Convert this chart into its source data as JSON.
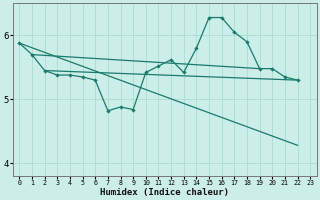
{
  "xlabel": "Humidex (Indice chaleur)",
  "bg_color": "#cceee8",
  "grid_color": "#aaddcc",
  "line_color": "#1a7a6e",
  "xlim": [
    -0.5,
    23.5
  ],
  "ylim": [
    3.8,
    6.5
  ],
  "yticks": [
    4,
    5,
    6
  ],
  "xticks": [
    0,
    1,
    2,
    3,
    4,
    5,
    6,
    7,
    8,
    9,
    10,
    11,
    12,
    13,
    14,
    15,
    16,
    17,
    18,
    19,
    20,
    21,
    22,
    23
  ],
  "line_zigzag": {
    "x": [
      0,
      1,
      2,
      3,
      4,
      5,
      6,
      7,
      8,
      9,
      10,
      11,
      12,
      13,
      14,
      15,
      16,
      17,
      18,
      19,
      20,
      21,
      22
    ],
    "y": [
      5.88,
      5.7,
      5.45,
      5.38,
      5.38,
      5.35,
      5.3,
      4.82,
      4.88,
      4.84,
      5.42,
      5.52,
      5.62,
      5.42,
      5.8,
      6.28,
      6.28,
      6.05,
      5.9,
      5.48,
      5.48,
      5.35,
      5.3
    ]
  },
  "line_steep": {
    "x": [
      0,
      22
    ],
    "y": [
      5.88,
      4.28
    ]
  },
  "line_flat1": {
    "x": [
      1,
      19
    ],
    "y": [
      5.7,
      5.48
    ]
  },
  "line_flat2": {
    "x": [
      2,
      22
    ],
    "y": [
      5.45,
      5.3
    ]
  }
}
